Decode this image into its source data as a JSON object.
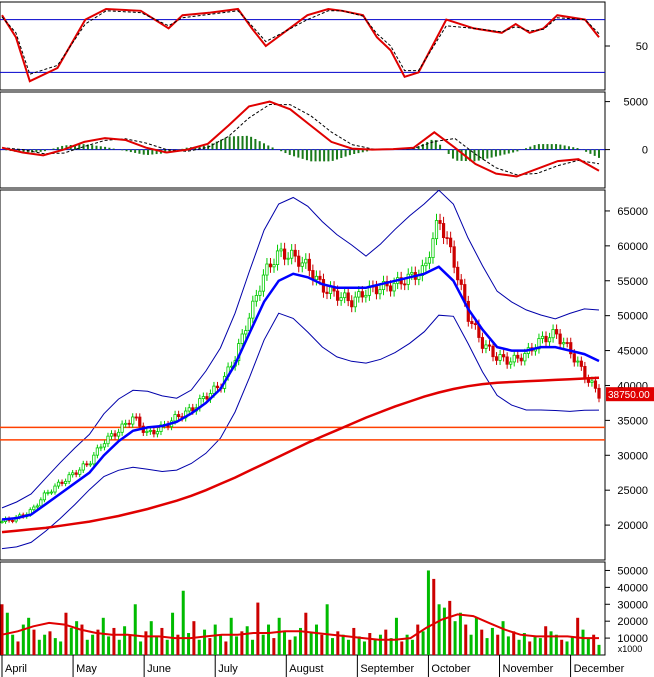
{
  "chart_data": [
    {
      "panel": "stochastic",
      "type": "line",
      "ylim": [
        0,
        100
      ],
      "y_ticks": [
        50
      ],
      "reference_lines": [
        80,
        20
      ],
      "series": [
        {
          "color": "#e00000",
          "x_days": [
            0,
            10,
            20,
            40,
            60,
            75,
            100,
            120,
            130,
            150,
            170,
            180,
            190,
            220,
            235,
            245,
            260,
            270,
            280,
            290,
            300,
            320,
            340,
            360,
            370,
            380,
            390,
            400,
            420,
            430
          ],
          "values": [
            85,
            60,
            10,
            25,
            80,
            92,
            90,
            70,
            85,
            88,
            92,
            70,
            50,
            85,
            92,
            90,
            85,
            60,
            45,
            15,
            20,
            80,
            70,
            65,
            75,
            65,
            70,
            85,
            80,
            60
          ]
        },
        {
          "color": "#000000",
          "dash": true,
          "x_days": [
            0,
            10,
            20,
            40,
            60,
            75,
            100,
            120,
            130,
            150,
            170,
            180,
            190,
            220,
            235,
            245,
            260,
            270,
            280,
            290,
            300,
            320,
            340,
            360,
            370,
            380,
            390,
            400,
            420,
            430
          ],
          "values": [
            83,
            65,
            18,
            28,
            75,
            90,
            88,
            73,
            82,
            86,
            90,
            73,
            55,
            80,
            90,
            90,
            84,
            64,
            50,
            22,
            22,
            73,
            70,
            66,
            72,
            67,
            69,
            82,
            80,
            64
          ]
        }
      ]
    },
    {
      "panel": "macd",
      "type": "line",
      "ylim": [
        -4000,
        6000
      ],
      "y_ticks": [
        5000,
        0
      ],
      "series": [
        {
          "name_hint": "macd",
          "color": "#e00000"
        },
        {
          "name_hint": "signal",
          "color": "#000000",
          "dash": true
        },
        {
          "name_hint": "histogram",
          "color": "#1a7a1a"
        }
      ]
    },
    {
      "panel": "price",
      "type": "candlestick",
      "ylim": [
        15000,
        68000
      ],
      "y_ticks": [
        20000,
        25000,
        30000,
        35000,
        40000,
        45000,
        50000,
        55000,
        60000,
        65000
      ],
      "last_price_label": "38750.00",
      "horizontal_levels": [
        34000,
        32200
      ],
      "series": [
        {
          "name_hint": "close",
          "values": [
            20500,
            21000,
            22000,
            24500,
            26000,
            27500,
            29000,
            32000,
            33500,
            35500,
            33000,
            34000,
            35500,
            36500,
            38500,
            40000,
            44000,
            50000,
            56000,
            59000,
            58500,
            57000,
            54000,
            53000,
            52000,
            53500,
            54000,
            54500,
            55500,
            56500,
            64000,
            58000,
            50000,
            46000,
            44000,
            43500,
            44500,
            46500,
            47500,
            45000,
            41500,
            38750
          ]
        },
        {
          "name_hint": "ma20",
          "color": "#0000ff",
          "values": [
            20800,
            21000,
            21500,
            23000,
            24500,
            26000,
            27500,
            30000,
            32000,
            33500,
            34000,
            34200,
            34800,
            36000,
            37500,
            39500,
            43000,
            47500,
            52000,
            55000,
            56000,
            55500,
            54500,
            54000,
            54000,
            54000,
            54500,
            55000,
            55500,
            56000,
            57000,
            55000,
            51000,
            48000,
            45500,
            45000,
            45000,
            45500,
            45500,
            45000,
            44500,
            43500
          ]
        },
        {
          "name_hint": "ma200",
          "color": "#e00000",
          "values": [
            19000,
            19200,
            19400,
            19600,
            19900,
            20200,
            20500,
            20900,
            21300,
            21800,
            22300,
            22900,
            23500,
            24200,
            25000,
            25900,
            26800,
            27800,
            28800,
            29800,
            30800,
            31800,
            32700,
            33600,
            34500,
            35400,
            36200,
            37000,
            37700,
            38400,
            39000,
            39500,
            39900,
            40200,
            40400,
            40500,
            40600,
            40700,
            40800,
            40900,
            41000,
            41100
          ]
        }
      ]
    },
    {
      "panel": "volume",
      "type": "bar",
      "ylim": [
        0,
        55000
      ],
      "y_ticks": [
        10000,
        20000,
        30000,
        40000,
        50000
      ],
      "unit_label": "x1000",
      "series": [
        {
          "name_hint": "volume",
          "values": [
            30000,
            25000,
            12000,
            8000,
            18000,
            22000,
            15000,
            9000,
            12000,
            14000,
            10000,
            8000,
            25000,
            16000,
            20000,
            18000,
            9000,
            12000,
            15000,
            22000,
            11000,
            16000,
            9000,
            17000,
            12000,
            30000,
            8000,
            14000,
            20000,
            11000,
            16000,
            9000,
            25000,
            12000,
            38000,
            13000,
            20000,
            9000,
            15000,
            10000,
            18000,
            12000,
            8000,
            22000,
            11000,
            14000,
            17000,
            9000,
            31000,
            12000,
            18000,
            10000,
            22000,
            14000,
            9000,
            11000,
            16000,
            25000,
            13000,
            18000,
            12000,
            30000,
            10000,
            14000,
            12000,
            9000,
            16000,
            11000,
            8000,
            13000,
            9000,
            12000,
            15000,
            10000,
            22000,
            8000,
            12000,
            9000,
            18000,
            14000,
            50000,
            45000,
            30000,
            28000,
            32000,
            20000,
            25000,
            18000,
            12000,
            22000,
            15000,
            10000,
            16000,
            12000,
            20000,
            11000,
            14000,
            9000,
            13000,
            8000,
            11000,
            10000,
            17000,
            14000,
            12000,
            9000,
            8000,
            11000,
            22000,
            15000,
            10000,
            12000,
            6000
          ]
        },
        {
          "name_hint": "volume_ma",
          "color": "#e00000",
          "values": [
            12000,
            14000,
            17000,
            19000,
            18000,
            15000,
            13000,
            12000,
            12000,
            11000,
            11000,
            10000,
            10000,
            11000,
            12000,
            12000,
            13000,
            13000,
            14000,
            14000,
            13000,
            12000,
            11000,
            10000,
            9000,
            9000,
            10000,
            16000,
            21000,
            24000,
            23000,
            19000,
            15000,
            12000,
            11000,
            11000,
            11000,
            10000,
            10000
          ]
        }
      ]
    }
  ],
  "x_axis": {
    "labels": [
      "April",
      "May",
      "June",
      "July",
      "August",
      "September",
      "October",
      "November",
      "December"
    ]
  }
}
